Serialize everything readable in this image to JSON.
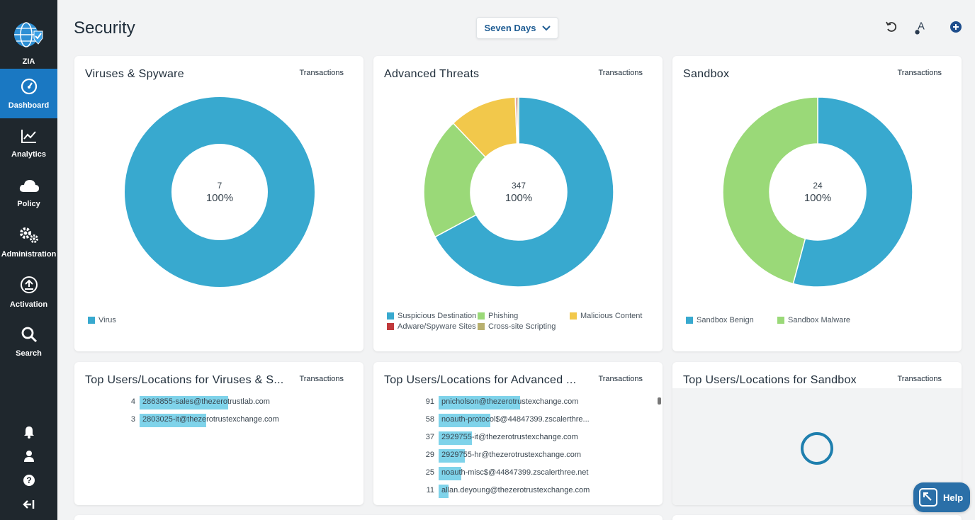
{
  "sidebar": {
    "brand": "ZIA",
    "items": [
      {
        "label": "Dashboard",
        "icon": "dashboard-gauge-icon",
        "active": true
      },
      {
        "label": "Analytics",
        "icon": "chart-line-icon"
      },
      {
        "label": "Policy",
        "icon": "cloud-icon"
      },
      {
        "label": "Administration",
        "icon": "gears-icon"
      },
      {
        "label": "Activation",
        "icon": "upload-icon"
      },
      {
        "label": "Search",
        "icon": "search-icon"
      }
    ],
    "bottom_icons": [
      "bell-icon",
      "user-icon",
      "help-icon",
      "logout-icon"
    ]
  },
  "header": {
    "title": "Security",
    "time_range": "Seven Days",
    "actions": [
      "refresh-icon",
      "text-format-icon",
      "add-icon"
    ]
  },
  "colors": {
    "blue": "#38a9cf",
    "green": "#9ad978",
    "yellow": "#f2c84b",
    "red": "#c0393b",
    "olive": "#b8b06f",
    "bar": "#7fd3ea"
  },
  "cards": {
    "viruses": {
      "title": "Viruses & Spyware",
      "metric": "Transactions",
      "count": "7",
      "percent": "100%",
      "legend": [
        {
          "label": "Virus",
          "color": "#38a9cf"
        }
      ]
    },
    "advanced": {
      "title": "Advanced Threats",
      "metric": "Transactions",
      "count": "347",
      "percent": "100%",
      "legend": [
        {
          "label": "Suspicious Destination",
          "color": "#38a9cf"
        },
        {
          "label": "Phishing",
          "color": "#9ad978"
        },
        {
          "label": "Malicious Content",
          "color": "#f2c84b"
        },
        {
          "label": "Adware/Spyware Sites",
          "color": "#c0393b"
        },
        {
          "label": "Cross-site Scripting",
          "color": "#b8b06f"
        }
      ]
    },
    "sandbox": {
      "title": "Sandbox",
      "metric": "Transactions",
      "count": "24",
      "percent": "100%",
      "legend": [
        {
          "label": "Sandbox Benign",
          "color": "#38a9cf"
        },
        {
          "label": "Sandbox Malware",
          "color": "#9ad978"
        }
      ]
    },
    "top_viruses": {
      "title": "Top Users/Locations for Viruses & S...",
      "metric": "Transactions",
      "rows": [
        {
          "count": "4",
          "label": "2863855-sales@thezerotrustlab.com"
        },
        {
          "count": "3",
          "label": "2803025-it@thezerotrustexchange.com"
        }
      ]
    },
    "top_advanced": {
      "title": "Top Users/Locations for Advanced ...",
      "metric": "Transactions",
      "rows": [
        {
          "count": "91",
          "label": "pnicholson@thezerotrustexchange.com"
        },
        {
          "count": "58",
          "label": "noauth-protocol$@44847399.zscalerthre..."
        },
        {
          "count": "37",
          "label": "2929755-it@thezerotrustexchange.com"
        },
        {
          "count": "29",
          "label": "2929755-hr@thezerotrustexchange.com"
        },
        {
          "count": "25",
          "label": "noauth-misc$@44847399.zscalerthree.net"
        },
        {
          "count": "11",
          "label": "allan.deyoung@thezerotrustexchange.com"
        }
      ]
    },
    "top_sandbox": {
      "title": "Top Users/Locations for Sandbox",
      "metric": "Transactions"
    }
  },
  "chart_data": [
    {
      "type": "pie",
      "title": "Viruses & Spyware",
      "categories": [
        "Virus"
      ],
      "values": [
        7
      ]
    },
    {
      "type": "pie",
      "title": "Advanced Threats",
      "categories": [
        "Suspicious Destination",
        "Phishing",
        "Malicious Content",
        "Adware/Spyware Sites",
        "Cross-site Scripting"
      ],
      "values": [
        233,
        72,
        40,
        1,
        1
      ]
    },
    {
      "type": "pie",
      "title": "Sandbox",
      "categories": [
        "Sandbox Benign",
        "Sandbox Malware"
      ],
      "values": [
        13,
        11
      ]
    },
    {
      "type": "bar",
      "title": "Top Users/Locations for Viruses & S...",
      "categories": [
        "2863855-sales@thezerotrustlab.com",
        "2803025-it@thezerotrustexchange.com"
      ],
      "values": [
        4,
        3
      ]
    },
    {
      "type": "bar",
      "title": "Top Users/Locations for Advanced ...",
      "categories": [
        "pnicholson@thezerotrustexchange.com",
        "noauth-protocol$@44847399.zscalerthre...",
        "2929755-it@thezerotrustexchange.com",
        "2929755-hr@thezerotrustexchange.com",
        "noauth-misc$@44847399.zscalerthree.net",
        "allan.deyoung@thezerotrustexchange.com"
      ],
      "values": [
        91,
        58,
        37,
        29,
        25,
        11
      ]
    }
  ],
  "help": {
    "label": "Help"
  }
}
